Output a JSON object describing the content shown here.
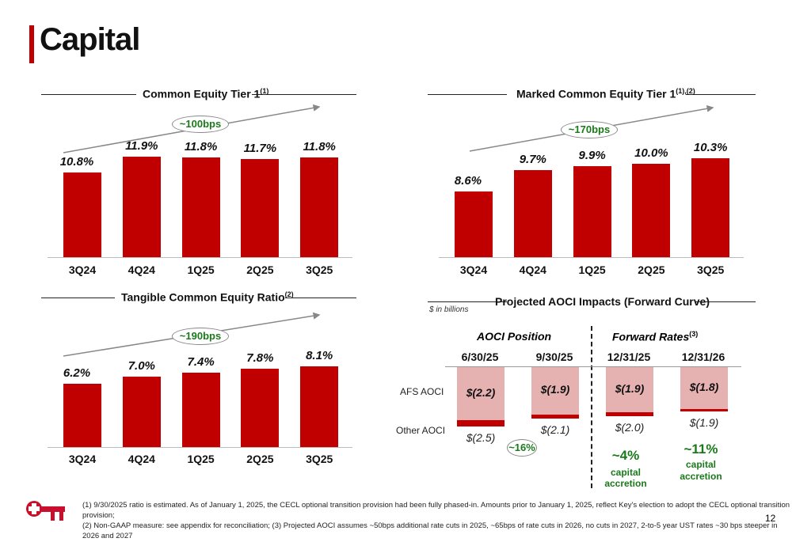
{
  "header": {
    "title": "Capital"
  },
  "colors": {
    "bar": "#c00000",
    "afs": "#e6b1b1",
    "green": "#1a7a1a"
  },
  "chart_data": [
    {
      "type": "bar",
      "title": "Common Equity Tier 1",
      "title_sup": "(1)",
      "categories": [
        "3Q24",
        "4Q24",
        "1Q25",
        "2Q25",
        "3Q25"
      ],
      "values": [
        10.8,
        11.9,
        11.8,
        11.7,
        11.8
      ],
      "labels": [
        "10.8%",
        "11.9%",
        "11.8%",
        "11.7%",
        "11.8%"
      ],
      "annotation": "~100bps"
    },
    {
      "type": "bar",
      "title": "Marked Common Equity Tier 1",
      "title_sup": "(1),(2)",
      "categories": [
        "3Q24",
        "4Q24",
        "1Q25",
        "2Q25",
        "3Q25"
      ],
      "values": [
        8.6,
        9.7,
        9.9,
        10.0,
        10.3
      ],
      "labels": [
        "8.6%",
        "9.7%",
        "9.9%",
        "10.0%",
        "10.3%"
      ],
      "annotation": "~170bps"
    },
    {
      "type": "bar",
      "title": "Tangible Common Equity Ratio",
      "title_sup": "(2)",
      "categories": [
        "3Q24",
        "4Q24",
        "1Q25",
        "2Q25",
        "3Q25"
      ],
      "values": [
        6.2,
        7.0,
        7.4,
        7.8,
        8.1
      ],
      "labels": [
        "6.2%",
        "7.0%",
        "7.4%",
        "7.8%",
        "8.1%"
      ],
      "annotation": "~190bps"
    },
    {
      "type": "bar",
      "title": "Projected AOCI Impacts (Forward Curve)",
      "unit_note": "$ in billions",
      "group_labels": [
        "AOCI Position",
        "Forward Rates"
      ],
      "group_sup": "(3)",
      "categories": [
        "6/30/25",
        "9/30/25",
        "12/31/25",
        "12/31/26"
      ],
      "series": [
        {
          "name": "AFS AOCI",
          "values": [
            -2.2,
            -1.9,
            -1.9,
            -1.8
          ],
          "labels": [
            "$(2.2)",
            "$(1.9)",
            "$(1.9)",
            "$(1.8)"
          ]
        },
        {
          "name": "Other AOCI",
          "values": [
            -0.3,
            -0.2,
            -0.1,
            -0.1
          ],
          "total_labels": [
            "$(2.5)",
            "$(2.1)",
            "$(2.0)",
            "$(1.9)"
          ]
        }
      ],
      "annotations": {
        "change": "~16%",
        "accretion": [
          {
            "pct": "~4%",
            "text1": "capital",
            "text2": "accretion"
          },
          {
            "pct": "~11%",
            "text1": "capital",
            "text2": "accretion"
          }
        ]
      }
    }
  ],
  "footer": {
    "line1": "(1) 9/30/2025 ratio is estimated.  As of January 1, 2025, the CECL optional transition provision had been fully phased-in. Amounts prior to January 1, 2025, reflect Key's election to adopt the CECL optional transition provision;",
    "line2": "(2) Non-GAAP measure: see appendix for reconciliation; (3) Projected AOCI assumes ~50bps additional rate cuts in 2025, ~65bps of rate cuts in 2026, no cuts in 2027, 2-to-5 year UST rates ~30 bps steeper in 2026 and 2027",
    "page": "12"
  }
}
